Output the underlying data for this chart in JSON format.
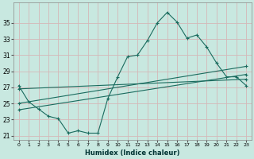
{
  "xlabel": "Humidex (Indice chaleur)",
  "bg_color": "#c8e8e0",
  "grid_color": "#d4b8b8",
  "line_color": "#1a6b5e",
  "xlim": [
    -0.5,
    23.5
  ],
  "ylim": [
    20.5,
    37.5
  ],
  "yticks": [
    21,
    23,
    25,
    27,
    29,
    31,
    33,
    35
  ],
  "xticks": [
    0,
    1,
    2,
    3,
    4,
    5,
    6,
    7,
    8,
    9,
    10,
    11,
    12,
    13,
    14,
    15,
    16,
    17,
    18,
    19,
    20,
    21,
    22,
    23
  ],
  "main_line": [
    27.2,
    25.2,
    24.3,
    23.4,
    23.1,
    21.3,
    21.6,
    21.3,
    21.3,
    25.6,
    28.3,
    30.8,
    31.0,
    32.8,
    35.0,
    36.3,
    35.1,
    33.1,
    33.5,
    32.0,
    30.0,
    28.3,
    28.3,
    27.2
  ],
  "trend1_x": [
    0,
    23
  ],
  "trend1_y": [
    25.0,
    29.6
  ],
  "trend2_x": [
    0,
    23
  ],
  "trend2_y": [
    24.2,
    28.6
  ],
  "trend3_x": [
    0,
    23
  ],
  "trend3_y": [
    26.8,
    28.0
  ]
}
